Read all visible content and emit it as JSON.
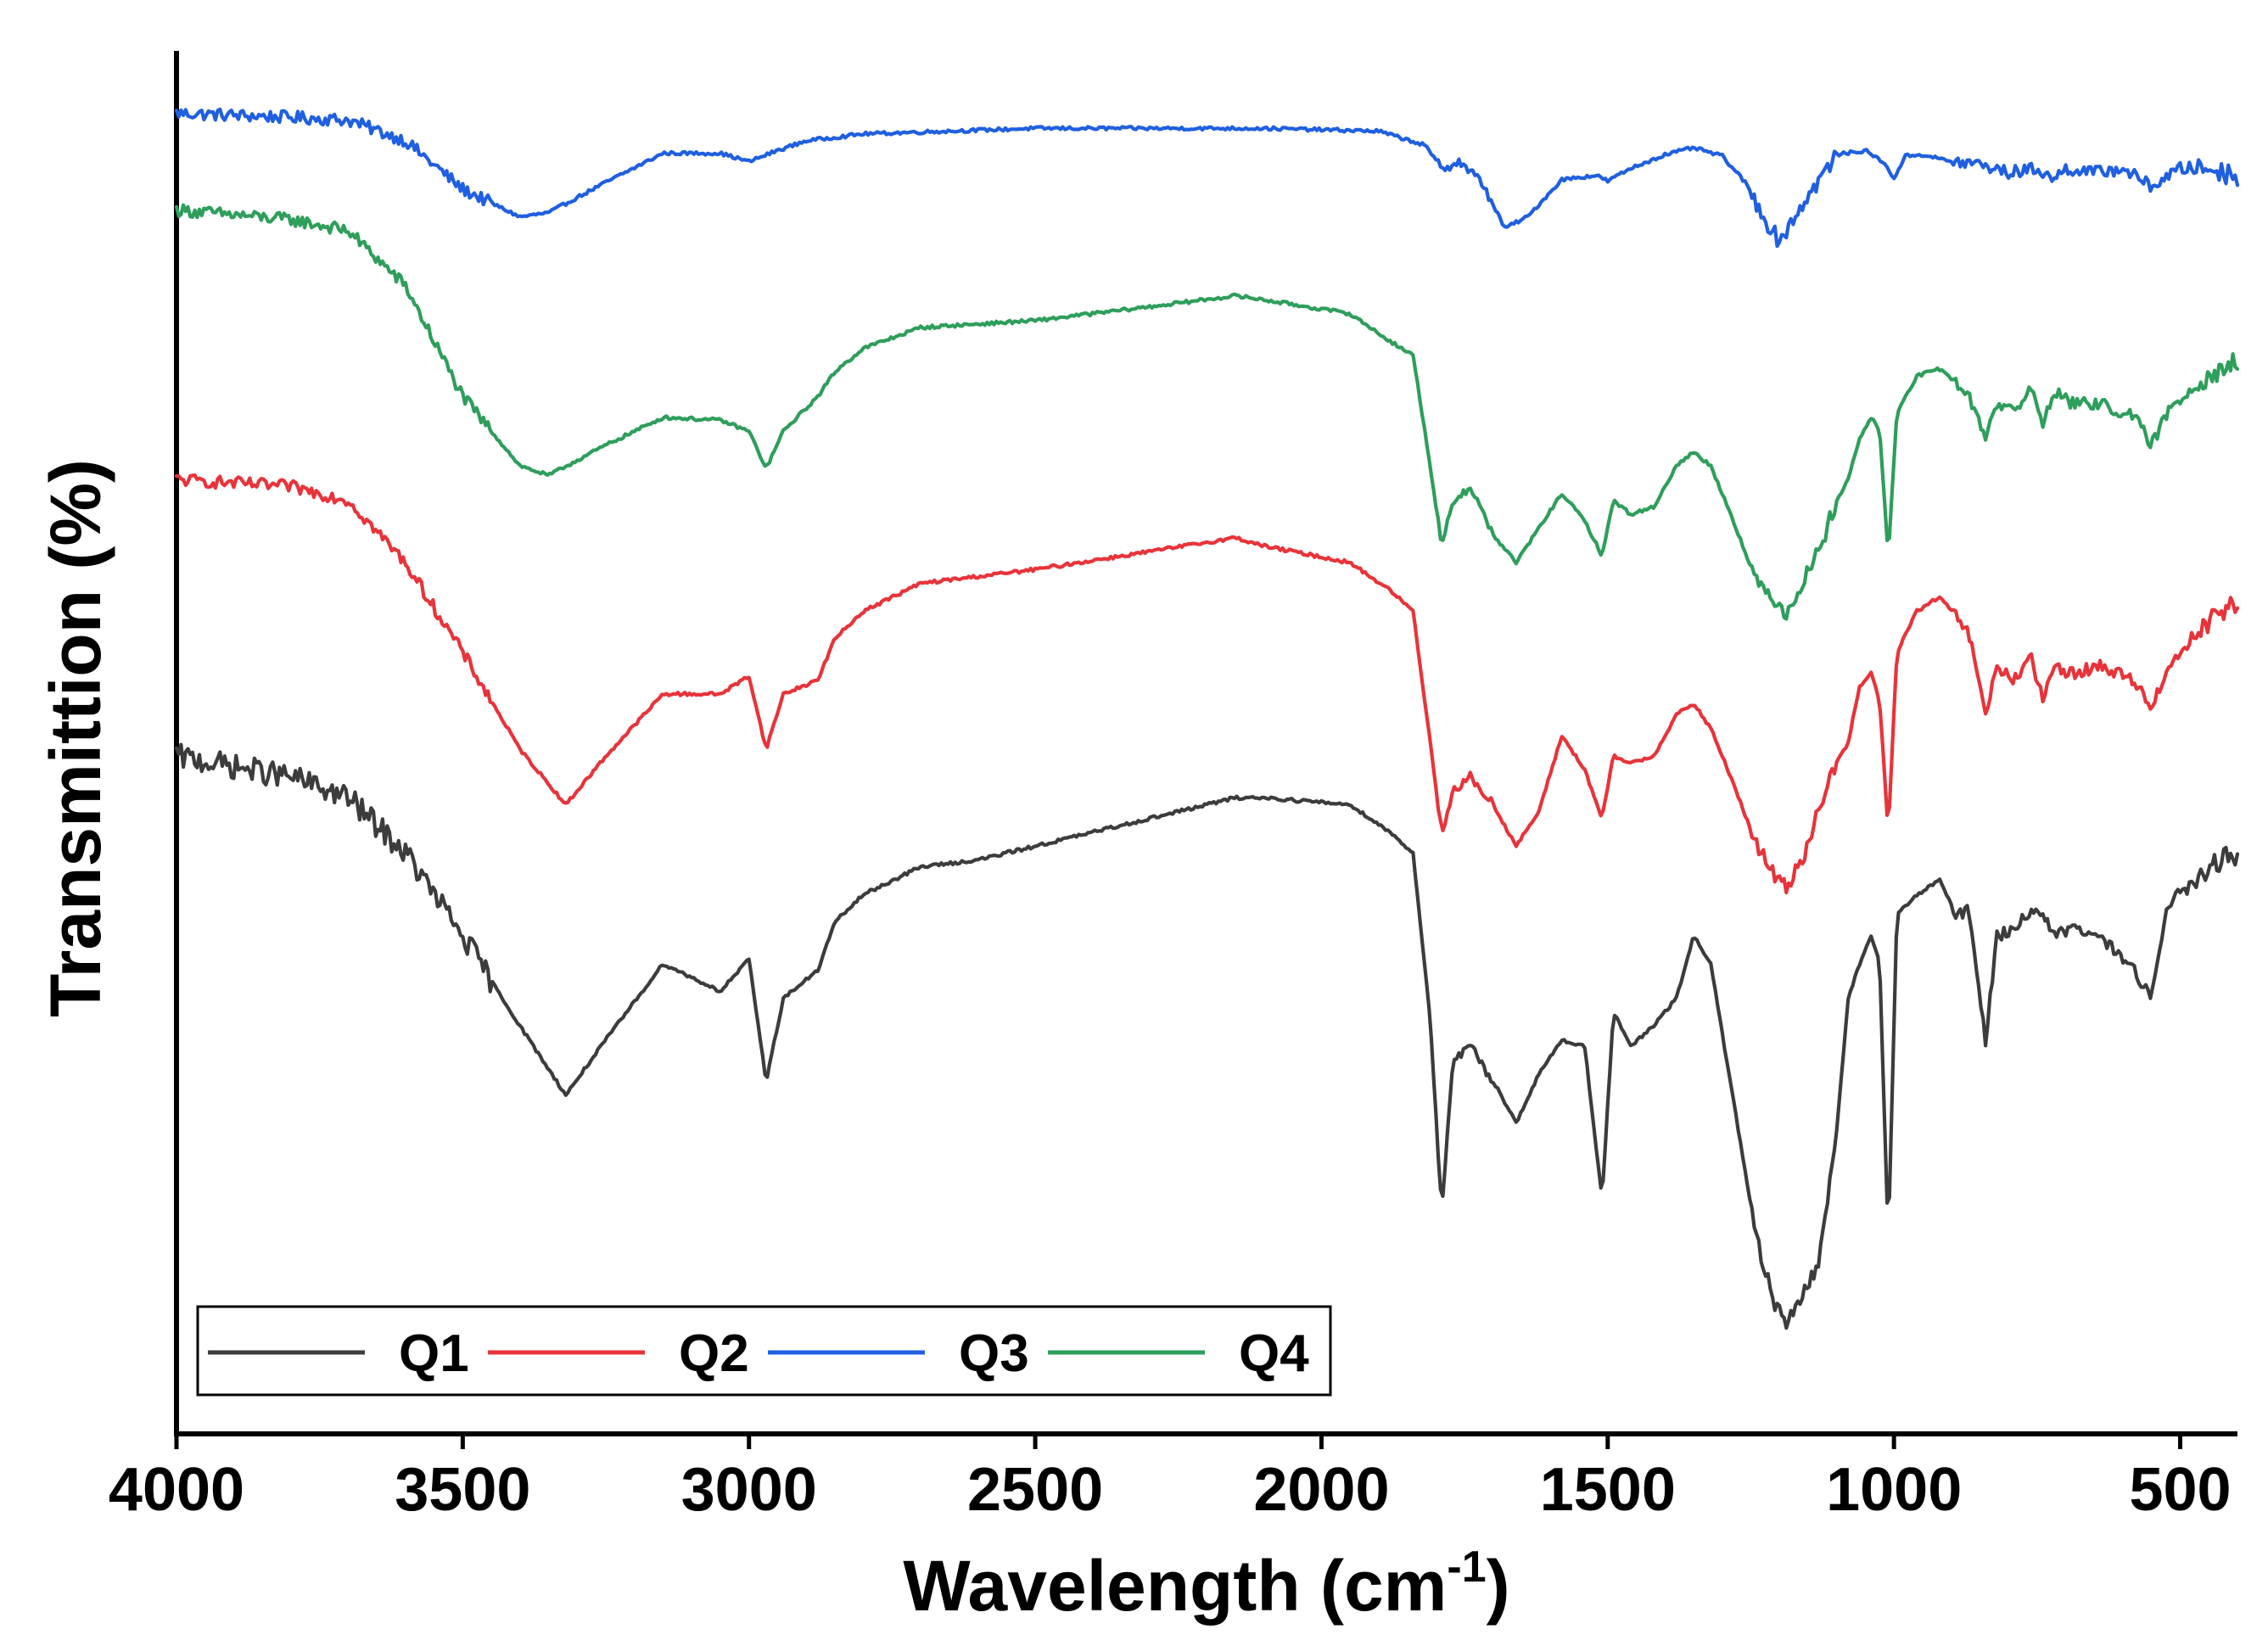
{
  "chart_data": {
    "type": "line",
    "title": "",
    "xlabel": "Wavelength (cm",
    "xlabel_sup": "-1",
    "xlabel_close": ")",
    "ylabel": "Transmittion (%)",
    "xlim": [
      4000,
      400
    ],
    "xlim_note": "x axis reversed (wavenumber decreasing to the right)",
    "ylim": [
      0,
      100
    ],
    "y_units": "relative offset transmission (no y tick labels shown)",
    "x_ticks": [
      4000,
      3500,
      3000,
      2500,
      2000,
      1500,
      1000,
      500
    ],
    "x_tick_labels": [
      "4000",
      "3500",
      "3000",
      "2500",
      "2000",
      "1500",
      "1000",
      "500"
    ],
    "legend_position": "bottom-left (inside plot)",
    "grid": false,
    "series": [
      {
        "name": "Q3",
        "color": "#1f5fe0",
        "x": [
          4000,
          3800,
          3700,
          3600,
          3500,
          3400,
          3350,
          3250,
          3150,
          3050,
          3000,
          2950,
          2900,
          2800,
          2500,
          2100,
          1900,
          1820,
          1790,
          1760,
          1720,
          1680,
          1640,
          1580,
          1520,
          1500,
          1460,
          1400,
          1350,
          1300,
          1260,
          1220,
          1200,
          1180,
          1150,
          1100,
          1050,
          1020,
          1000,
          980,
          950,
          900,
          850,
          800,
          750,
          720,
          700,
          650,
          600,
          550,
          500,
          450,
          400
        ],
        "y": [
          95.5,
          95.2,
          95.0,
          93.5,
          90.0,
          88.0,
          88.3,
          90.5,
          92.6,
          92.6,
          92.0,
          92.8,
          93.5,
          94.0,
          94.4,
          94.4,
          94.2,
          93.2,
          91.5,
          92.0,
          90.5,
          87.2,
          88.0,
          90.7,
          91.0,
          90.6,
          91.5,
          92.5,
          93.0,
          92.4,
          90.5,
          87.5,
          86.2,
          87.6,
          89.5,
          92.5,
          92.8,
          92.0,
          90.8,
          92.4,
          92.5,
          92.0,
          91.8,
          91.2,
          91.5,
          90.7,
          91.5,
          91.2,
          91.5,
          90.2,
          91.5,
          91.5,
          91.0
        ]
      },
      {
        "name": "Q4",
        "color": "#2e9e5b",
        "x": [
          4000,
          3800,
          3700,
          3600,
          3500,
          3400,
          3350,
          3250,
          3150,
          3050,
          3000,
          2970,
          2940,
          2880,
          2850,
          2800,
          2700,
          2500,
          2300,
          2150,
          2100,
          1950,
          1880,
          1840,
          1810,
          1790,
          1770,
          1740,
          1700,
          1660,
          1620,
          1580,
          1540,
          1510,
          1490,
          1460,
          1420,
          1380,
          1350,
          1320,
          1280,
          1240,
          1210,
          1190,
          1160,
          1130,
          1100,
          1080,
          1060,
          1040,
          1025,
          1010,
          995,
          960,
          920,
          890,
          870,
          840,
          820,
          790,
          760,
          740,
          720,
          690,
          640,
          580,
          550,
          520,
          470,
          430,
          400
        ],
        "y": [
          88.5,
          87.8,
          87.0,
          83.0,
          75.0,
          70.0,
          69.3,
          71.5,
          73.5,
          73.3,
          72.5,
          69.8,
          72.5,
          75.0,
          76.8,
          78.5,
          80.0,
          80.5,
          81.5,
          82.3,
          82.0,
          81.0,
          79.0,
          78.0,
          70.0,
          64.0,
          67.5,
          68.5,
          65.0,
          63.0,
          65.5,
          68.0,
          66.0,
          63.5,
          67.5,
          66.5,
          67.0,
          70.0,
          71.0,
          70.0,
          66.0,
          61.5,
          60.5,
          59.3,
          61.5,
          64.0,
          67.5,
          69.0,
          72.0,
          73.5,
          72.5,
          63.5,
          73.8,
          76.5,
          77.0,
          76.0,
          75.0,
          72.2,
          74.5,
          74.0,
          75.5,
          73.0,
          75.5,
          74.5,
          74.5,
          73.5,
          71.5,
          74.0,
          76.0,
          77.0,
          77.5
        ]
      },
      {
        "name": "Q2",
        "color": "#e8333a",
        "x": [
          4000,
          3800,
          3700,
          3600,
          3500,
          3400,
          3320,
          3250,
          3150,
          3050,
          3000,
          2970,
          2940,
          2880,
          2850,
          2800,
          2700,
          2500,
          2300,
          2150,
          2100,
          1950,
          1880,
          1840,
          1810,
          1790,
          1770,
          1740,
          1700,
          1660,
          1620,
          1580,
          1540,
          1510,
          1490,
          1460,
          1420,
          1380,
          1350,
          1320,
          1280,
          1240,
          1210,
          1190,
          1160,
          1130,
          1100,
          1080,
          1060,
          1040,
          1025,
          1010,
          995,
          960,
          920,
          890,
          870,
          840,
          820,
          790,
          760,
          740,
          720,
          690,
          640,
          580,
          550,
          520,
          470,
          430,
          400
        ],
        "y": [
          69.0,
          68.5,
          67.5,
          63.0,
          56.5,
          49.5,
          45.5,
          49.0,
          53.5,
          53.5,
          54.8,
          49.5,
          53.5,
          54.5,
          57.5,
          59.5,
          61.5,
          62.5,
          63.8,
          64.8,
          64.2,
          63.0,
          61.0,
          59.5,
          50.0,
          43.5,
          46.5,
          47.5,
          45.5,
          42.5,
          45.0,
          50.5,
          48.0,
          44.5,
          49.0,
          48.5,
          49.0,
          52.0,
          52.8,
          51.0,
          47.0,
          42.5,
          40.5,
          39.5,
          41.5,
          45.5,
          48.5,
          50.0,
          54.0,
          55.0,
          53.0,
          43.5,
          56.5,
          59.5,
          60.5,
          59.0,
          58.0,
          52.0,
          55.5,
          54.5,
          56.0,
          53.0,
          55.5,
          55.0,
          55.5,
          54.5,
          52.5,
          55.5,
          58.0,
          59.5,
          60.0
        ]
      },
      {
        "name": "Q1",
        "color": "#3c3c3c",
        "x": [
          4000,
          3800,
          3700,
          3600,
          3500,
          3400,
          3320,
          3250,
          3150,
          3050,
          3000,
          2970,
          2940,
          2880,
          2850,
          2800,
          2700,
          2600,
          2500,
          2300,
          2150,
          2100,
          1950,
          1880,
          1840,
          1810,
          1790,
          1770,
          1740,
          1700,
          1660,
          1620,
          1580,
          1540,
          1510,
          1490,
          1460,
          1420,
          1380,
          1350,
          1320,
          1280,
          1240,
          1210,
          1190,
          1160,
          1130,
          1100,
          1080,
          1060,
          1040,
          1025,
          1010,
          995,
          960,
          920,
          890,
          870,
          840,
          820,
          790,
          760,
          740,
          720,
          690,
          640,
          580,
          550,
          520,
          470,
          430,
          400
        ],
        "y": [
          49.0,
          47.5,
          46.0,
          42.0,
          36.0,
          29.5,
          24.5,
          28.5,
          34.0,
          32.0,
          34.3,
          25.5,
          31.5,
          33.5,
          37.0,
          39.0,
          41.0,
          41.5,
          42.5,
          44.5,
          46.0,
          46.0,
          45.5,
          43.5,
          42.0,
          30.0,
          16.0,
          27.0,
          28.0,
          25.5,
          22.5,
          26.0,
          28.5,
          28.0,
          17.0,
          30.5,
          28.0,
          29.5,
          31.5,
          36.0,
          34.0,
          24.0,
          14.0,
          9.5,
          8.0,
          10.0,
          12.5,
          22.0,
          31.5,
          34.0,
          36.0,
          34.0,
          14.0,
          37.5,
          39.0,
          40.0,
          37.5,
          38.0,
          28.5,
          36.0,
          36.5,
          38.0,
          37.5,
          36.0,
          36.5,
          36.0,
          33.5,
          31.5,
          38.5,
          40.0,
          41.5,
          42.0
        ]
      }
    ],
    "legend": [
      {
        "label": "Q1",
        "color": "#3c3c3c"
      },
      {
        "label": "Q2",
        "color": "#e8333a"
      },
      {
        "label": "Q3",
        "color": "#1f5fe0"
      },
      {
        "label": "Q4",
        "color": "#2e9e5b"
      }
    ]
  }
}
